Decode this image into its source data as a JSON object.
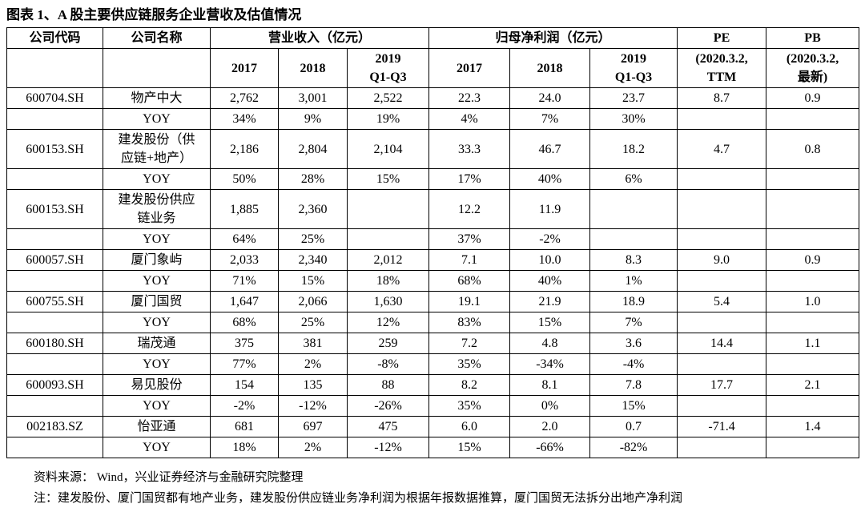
{
  "title": "图表 1、A 股主要供应链服务企业营收及估值情况",
  "table": {
    "header1": [
      "公司代码",
      "公司名称",
      "营业收入（亿元）",
      "归母净利润（亿元）",
      "PE",
      "PB"
    ],
    "header2": [
      null,
      null,
      "2017",
      "2018",
      "2019\nQ1-Q3",
      "2017",
      "2018",
      "2019\nQ1-Q3",
      "(2020.3.2,\nTTM",
      "(2020.3.2,\n最新)"
    ],
    "rows": [
      [
        "600704.SH",
        "物产中大",
        "2,762",
        "3,001",
        "2,522",
        "22.3",
        "24.0",
        "23.7",
        "8.7",
        "0.9"
      ],
      [
        null,
        "YOY",
        "34%",
        "9%",
        "19%",
        "4%",
        "7%",
        "30%",
        null,
        null
      ],
      [
        "600153.SH",
        "建发股份（供应链+地产）",
        "2,186",
        "2,804",
        "2,104",
        "33.3",
        "46.7",
        "18.2",
        "4.7",
        "0.8"
      ],
      [
        null,
        "YOY",
        "50%",
        "28%",
        "15%",
        "17%",
        "40%",
        "6%",
        null,
        null
      ],
      [
        "600153.SH",
        "建发股份供应链业务",
        "1,885",
        "2,360",
        null,
        "12.2",
        "11.9",
        null,
        null,
        null
      ],
      [
        null,
        "YOY",
        "64%",
        "25%",
        null,
        "37%",
        "-2%",
        null,
        null,
        null
      ],
      [
        "600057.SH",
        "厦门象屿",
        "2,033",
        "2,340",
        "2,012",
        "7.1",
        "10.0",
        "8.3",
        "9.0",
        "0.9"
      ],
      [
        null,
        "YOY",
        "71%",
        "15%",
        "18%",
        "68%",
        "40%",
        "1%",
        null,
        null
      ],
      [
        "600755.SH",
        "厦门国贸",
        "1,647",
        "2,066",
        "1,630",
        "19.1",
        "21.9",
        "18.9",
        "5.4",
        "1.0"
      ],
      [
        null,
        "YOY",
        "68%",
        "25%",
        "12%",
        "83%",
        "15%",
        "7%",
        null,
        null
      ],
      [
        "600180.SH",
        "瑞茂通",
        "375",
        "381",
        "259",
        "7.2",
        "4.8",
        "3.6",
        "14.4",
        "1.1"
      ],
      [
        null,
        "YOY",
        "77%",
        "2%",
        "-8%",
        "35%",
        "-34%",
        "-4%",
        null,
        null
      ],
      [
        "600093.SH",
        "易见股份",
        "154",
        "135",
        "88",
        "8.2",
        "8.1",
        "7.8",
        "17.7",
        "2.1"
      ],
      [
        null,
        "YOY",
        "-2%",
        "-12%",
        "-26%",
        "35%",
        "0%",
        "15%",
        null,
        null
      ],
      [
        "002183.SZ",
        "怡亚通",
        "681",
        "697",
        "475",
        "6.0",
        "2.0",
        "0.7",
        "-71.4",
        "1.4"
      ],
      [
        null,
        "YOY",
        "18%",
        "2%",
        "-12%",
        "15%",
        "-66%",
        "-82%",
        null,
        null
      ]
    ]
  },
  "source": "资料来源： Wind，兴业证券经济与金融研究院整理",
  "note": "注：建发股份、厦门国贸都有地产业务，建发股份供应链业务净利润为根据年报数据推算，厦门国贸无法拆分出地产净利润"
}
